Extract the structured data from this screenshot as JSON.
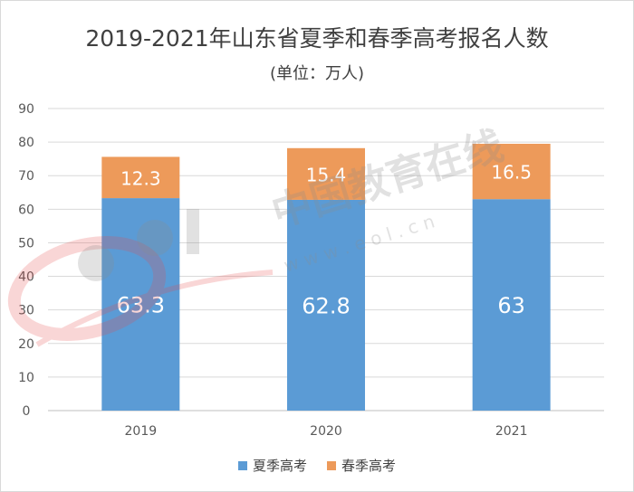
{
  "chart_data": {
    "type": "bar",
    "stacked": true,
    "title": "2019-2021年山东省夏季和春季高考报名人数",
    "subtitle": "(单位：万人)",
    "categories": [
      "2019",
      "2020",
      "2021"
    ],
    "series": [
      {
        "name": "夏季高考",
        "values": [
          63.3,
          62.8,
          63
        ],
        "color": "#5b9bd5"
      },
      {
        "name": "春季高考",
        "values": [
          12.3,
          15.4,
          16.5
        ],
        "color": "#ed9a5a"
      }
    ],
    "data_labels": [
      [
        "63.3",
        "62.8",
        "63"
      ],
      [
        "12.3",
        "15.4",
        "16.5"
      ]
    ],
    "ylim": [
      0,
      90
    ],
    "yticks": [
      0,
      10,
      20,
      30,
      40,
      50,
      60,
      70,
      80,
      90
    ],
    "grid": true,
    "legend_position": "bottom"
  },
  "watermark": {
    "logo_text": "eol",
    "text": "中国教育在线",
    "url": "w w w . e o l . c n"
  }
}
